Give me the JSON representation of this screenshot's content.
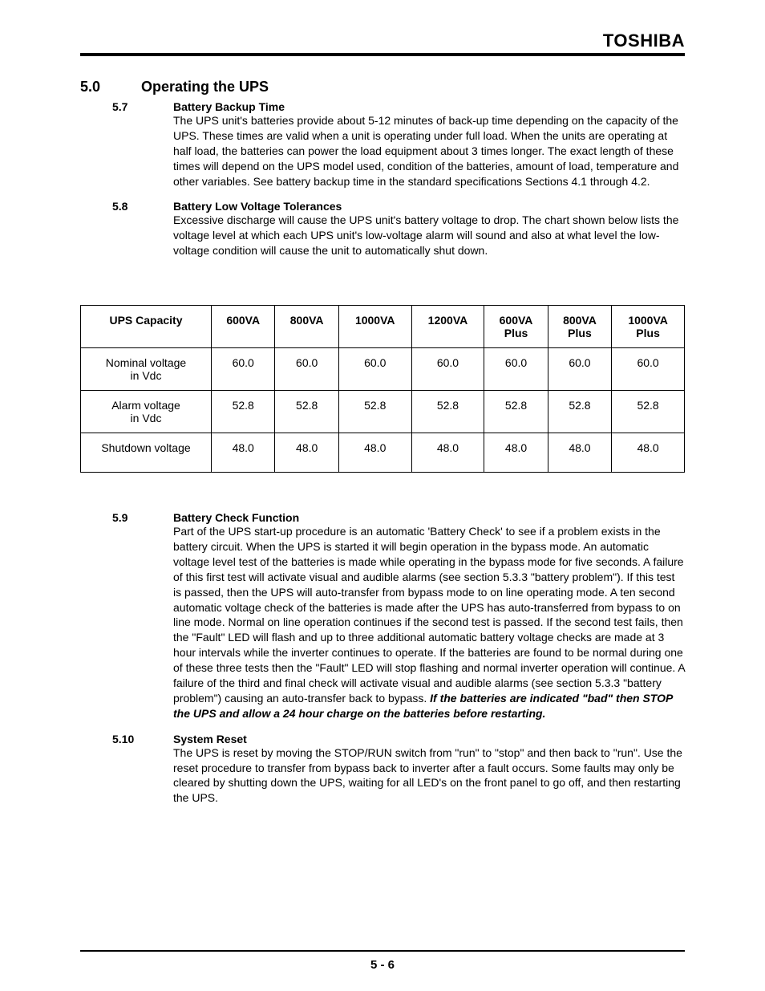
{
  "header": {
    "brand": "TOSHIBA"
  },
  "main": {
    "number": "5.0",
    "title": "Operating the UPS"
  },
  "sections": {
    "s57": {
      "num": "5.7",
      "title": "Battery Backup Time",
      "body": "The UPS unit's batteries provide about 5-12 minutes of back-up time depending on the capacity of the UPS. These times are valid when a unit is operating under full load.  When the units are operating at half load, the batteries can power the load equipment about 3 times longer. The exact length of these times will depend on the UPS model used, condition of the batteries, amount of load, temperature and other variables. See battery backup time in the standard specifications Sections 4.1 through 4.2."
    },
    "s58": {
      "num": "5.8",
      "title": "Battery Low Voltage Tolerances",
      "body": "Excessive discharge will cause the UPS unit's battery voltage to drop. The chart shown below lists the voltage level at which each UPS unit's low-voltage alarm will sound and also at what level the low-voltage condition will cause the unit to automatically shut down."
    },
    "s59": {
      "num": "5.9",
      "title": "Battery Check Function",
      "body": "Part of the UPS start-up procedure is an automatic 'Battery Check' to see if a problem exists in the battery circuit. When the UPS is started it will begin operation in the bypass mode. An automatic voltage level test of the batteries is made while operating in the bypass mode for five seconds. A failure of this first test will activate visual and audible alarms (see section 5.3.3 \"battery problem\"). If this test is passed, then the UPS will auto-transfer from bypass mode to on line operating mode. A ten second automatic voltage check of the batteries is made after the UPS has auto-transferred from bypass to on line mode. Normal on line operation continues if the second test is passed. If the second test fails, then the \"Fault\" LED will flash and up to three additional automatic battery voltage checks are made at 3 hour intervals while the inverter continues to operate. If the batteries are found to be normal during one of these three tests then the \"Fault\" LED will stop flashing and normal inverter operation will continue. A failure of the third and final check will activate visual and audible alarms (see section 5.3.3 \"battery problem\") causing an auto-transfer back to bypass. ",
      "emphasis": "If the batteries are indicated \"bad\" then STOP the UPS and allow a 24 hour charge on the batteries before restarting."
    },
    "s510": {
      "num": "5.10",
      "title": "System Reset",
      "body": "The UPS is reset by moving the STOP/RUN switch from \"run\" to \"stop\" and then back to \"run\". Use the reset procedure to transfer from bypass back to inverter after a fault occurs.  Some faults may only be cleared by shutting down the UPS, waiting for all LED's on the front panel to go off, and then restarting the UPS."
    }
  },
  "table": {
    "columns": [
      "UPS Capacity",
      "600VA",
      "800VA",
      "1000VA",
      "1200VA",
      "600VA Plus",
      "800VA Plus",
      "1000VA Plus"
    ],
    "rows": [
      {
        "label_line1": "Nominal voltage",
        "label_line2": "in Vdc",
        "values": [
          "60.0",
          "60.0",
          "60.0",
          "60.0",
          "60.0",
          "60.0",
          "60.0"
        ]
      },
      {
        "label_line1": "Alarm voltage",
        "label_line2": "in Vdc",
        "values": [
          "52.8",
          "52.8",
          "52.8",
          "52.8",
          "52.8",
          "52.8",
          "52.8"
        ]
      },
      {
        "label_line1": "Shutdown voltage",
        "label_line2": "",
        "values": [
          "48.0",
          "48.0",
          "48.0",
          "48.0",
          "48.0",
          "48.0",
          "48.0"
        ]
      }
    ]
  },
  "footer": {
    "page": "5 - 6"
  }
}
